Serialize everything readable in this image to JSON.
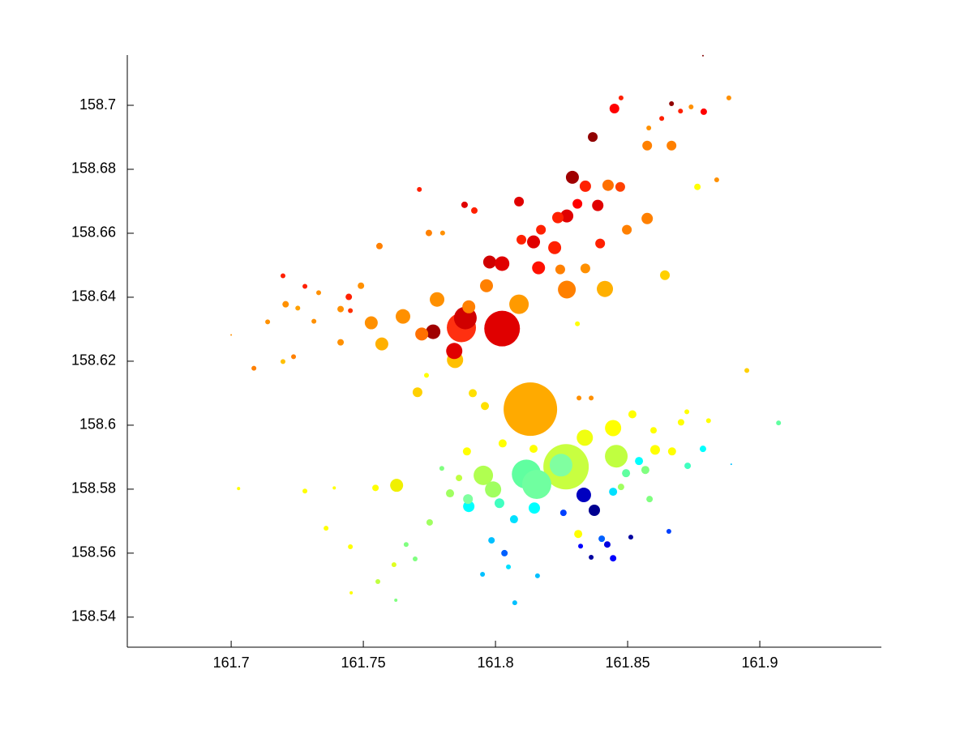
{
  "chart_data": {
    "type": "scatter",
    "xlim": [
      161.6607,
      161.946
    ],
    "ylim": [
      158.5306,
      158.7157
    ],
    "xticks": [
      161.7,
      161.75,
      161.8,
      161.85,
      161.9
    ],
    "yticks": [
      158.54,
      158.56,
      158.58,
      158.6,
      158.62,
      158.64,
      158.66,
      158.68,
      158.7
    ],
    "x": [
      161.8132,
      161.8267,
      161.8025,
      161.7871,
      161.8117,
      161.8156,
      161.7886,
      161.8248,
      161.8457,
      161.7954,
      161.8089,
      161.827,
      161.8414,
      161.8338,
      161.8445,
      161.7847,
      161.7844,
      161.7991,
      161.8334,
      161.7764,
      161.7779,
      161.765,
      161.7626,
      161.7721,
      161.753,
      161.757,
      161.7899,
      161.7966,
      161.7978,
      161.8025,
      161.8144,
      161.8224,
      161.827,
      161.8236,
      161.8291,
      161.834,
      161.8387,
      161.8426,
      161.8368,
      161.845,
      161.8574,
      161.8666,
      161.8472,
      161.8574,
      161.8497,
      161.831,
      161.8163,
      161.8245,
      161.8172,
      161.8098,
      161.8089,
      161.834,
      161.8396,
      161.8641,
      161.8374,
      161.8764,
      161.8837,
      161.8883,
      161.8788,
      161.874,
      161.87,
      161.8629,
      161.858,
      161.8475,
      161.8666,
      161.8785,
      161.7196,
      161.7138,
      161.7206,
      161.7252,
      161.7279,
      161.7331,
      161.7313,
      161.7414,
      161.7445,
      161.7491,
      161.7414,
      161.7451,
      161.7561,
      161.7086,
      161.7196,
      161.7236,
      161.7,
      161.7748,
      161.78,
      161.792,
      161.7883,
      161.7712,
      161.7705,
      161.7914,
      161.796,
      161.7739,
      161.8316,
      161.8362,
      161.831,
      161.8951,
      161.8518,
      161.8598,
      161.8702,
      161.8724,
      161.8806,
      161.9071,
      161.8892,
      161.8785,
      161.8727,
      161.8668,
      161.8604,
      161.8543,
      161.8567,
      161.8445,
      161.8494,
      161.8475,
      161.8583,
      161.8147,
      161.807,
      161.8015,
      161.7899,
      161.7896,
      161.7828,
      161.7751,
      161.7862,
      161.7797,
      161.7892,
      161.8027,
      161.8144,
      161.7662,
      161.7696,
      161.7616,
      161.7555,
      161.7623,
      161.7454,
      161.7451,
      161.7546,
      161.739,
      161.7279,
      161.7028,
      161.7359,
      161.8313,
      161.8257,
      161.8402,
      161.8445,
      161.8423,
      161.8362,
      161.8512,
      161.8656,
      161.8322,
      161.8034,
      161.8049,
      161.7951,
      161.8073,
      161.8159,
      161.7985
    ],
    "values": [
      158.605,
      158.587,
      158.6302,
      158.6305,
      158.5847,
      158.5815,
      158.6335,
      158.5875,
      158.5903,
      158.5843,
      158.6378,
      158.6424,
      158.6426,
      158.5961,
      158.5991,
      158.6204,
      158.6232,
      158.5799,
      158.5782,
      158.6292,
      158.6393,
      158.634,
      158.5812,
      158.6285,
      158.632,
      158.6254,
      158.637,
      158.6436,
      158.651,
      158.6505,
      158.6573,
      158.6555,
      158.6654,
      158.6649,
      158.6775,
      158.6747,
      158.6687,
      158.675,
      158.6901,
      158.699,
      158.6874,
      158.6874,
      158.6745,
      158.6646,
      158.6611,
      158.6692,
      158.6492,
      158.6487,
      158.6611,
      158.658,
      158.6699,
      158.649,
      158.6568,
      158.6469,
      158.5734,
      158.6745,
      158.6767,
      158.7023,
      158.698,
      158.6995,
      158.6982,
      158.6959,
      158.6929,
      158.7023,
      158.7005,
      158.7155,
      158.6467,
      158.6323,
      158.6378,
      158.6366,
      158.6434,
      158.6414,
      158.6325,
      158.6363,
      158.6401,
      158.6436,
      158.6259,
      158.6358,
      158.656,
      158.6178,
      158.6199,
      158.6214,
      158.6282,
      158.6601,
      158.6601,
      158.6671,
      158.6689,
      158.6737,
      158.6103,
      158.61,
      158.606,
      158.6156,
      158.6085,
      158.6085,
      158.6317,
      158.6171,
      158.6034,
      158.5984,
      158.6009,
      158.6042,
      158.6014,
      158.6007,
      158.5878,
      158.5926,
      158.5873,
      158.5918,
      158.5923,
      158.5888,
      158.586,
      158.5792,
      158.585,
      158.5807,
      158.5769,
      158.5741,
      158.5706,
      158.5756,
      158.5746,
      158.5769,
      158.5787,
      158.5696,
      158.5835,
      158.5865,
      158.5918,
      158.5943,
      158.5926,
      158.5627,
      158.5582,
      158.5564,
      158.5511,
      158.5453,
      158.5476,
      158.562,
      158.5804,
      158.5804,
      158.5794,
      158.5802,
      158.5678,
      158.566,
      158.5726,
      158.5645,
      158.5584,
      158.5627,
      158.5587,
      158.565,
      158.5668,
      158.5622,
      158.56,
      158.5557,
      158.5534,
      158.5445,
      158.5529,
      158.564
    ],
    "sizes": [
      33,
      28,
      22,
      18,
      18,
      18,
      14,
      14,
      14,
      12,
      12,
      11,
      10,
      10,
      10,
      10,
      10,
      10,
      9,
      9,
      9,
      9,
      8,
      8,
      8,
      8,
      8,
      8,
      8,
      9,
      8,
      8,
      8,
      7,
      8,
      7,
      7,
      7,
      6,
      6,
      6,
      6,
      6,
      7,
      6,
      6,
      8,
      6,
      6,
      6,
      6,
      6,
      6,
      6,
      7,
      4,
      3,
      3,
      4,
      3,
      3,
      3,
      3,
      3,
      3,
      1,
      3,
      3,
      4,
      3,
      3,
      3,
      3,
      4,
      4,
      4,
      4,
      3,
      4,
      3,
      3,
      3,
      1,
      4,
      3,
      4,
      4,
      3,
      6,
      5,
      5,
      3,
      3,
      3,
      3,
      3,
      5,
      4,
      4,
      3,
      3,
      3,
      1,
      4,
      4,
      5,
      6,
      5,
      5,
      5,
      5,
      4,
      4,
      7,
      5,
      6,
      7,
      6,
      5,
      4,
      4,
      3,
      5,
      5,
      5,
      3,
      3,
      3,
      3,
      2,
      2,
      3,
      4,
      2,
      3,
      2,
      3,
      5,
      4,
      4,
      4,
      4,
      3,
      3,
      3,
      3,
      4,
      3,
      3,
      3,
      3,
      4
    ],
    "colors": [
      "#ffaa00",
      "#c8ff40",
      "#e00000",
      "#ff3010",
      "#60ffa0",
      "#70ffa0",
      "#d00000",
      "#80ffa0",
      "#c0ff40",
      "#b0ff50",
      "#ff9a00",
      "#ff8000",
      "#ffb000",
      "#f0ff10",
      "#ffff00",
      "#ffc000",
      "#e00000",
      "#a0ff60",
      "#0000c0",
      "#a00000",
      "#ff9000",
      "#ff9000",
      "#f0f000",
      "#ff7000",
      "#ff9000",
      "#ffb000",
      "#ff8000",
      "#ff8000",
      "#d00000",
      "#e00000",
      "#e00000",
      "#ff2000",
      "#e00000",
      "#ff2000",
      "#a00000",
      "#ff2000",
      "#e00000",
      "#ff7000",
      "#900000",
      "#ff0000",
      "#ff8000",
      "#ff8000",
      "#ff4000",
      "#ff8000",
      "#ff8000",
      "#ff0000",
      "#ff1000",
      "#ff8000",
      "#ff2000",
      "#ff2000",
      "#e00000",
      "#ff9000",
      "#ff2000",
      "#ffd000",
      "#000090",
      "#ffff00",
      "#ff9000",
      "#ff9000",
      "#ff0000",
      "#ff9000",
      "#ff2000",
      "#ff2000",
      "#ff9000",
      "#ff2000",
      "#900000",
      "#800000",
      "#ff2000",
      "#ff9000",
      "#ff9000",
      "#ffa000",
      "#ff2000",
      "#ff9000",
      "#ff9000",
      "#ff9000",
      "#ff2000",
      "#ff9000",
      "#ff9000",
      "#ff3000",
      "#ff8000",
      "#ff8000",
      "#ffc000",
      "#ff8000",
      "#ff9000",
      "#ff8000",
      "#ff9000",
      "#ff2000",
      "#e00000",
      "#ff2000",
      "#ffd000",
      "#ffe000",
      "#ffe000",
      "#ffff00",
      "#ff9000",
      "#ff9000",
      "#ffff00",
      "#ffd000",
      "#ffff00",
      "#ffff00",
      "#ffff00",
      "#ffff00",
      "#ffff00",
      "#60ffa0",
      "#00c0ff",
      "#00ffff",
      "#40ffc0",
      "#ffff00",
      "#ffff00",
      "#00ffff",
      "#80ff80",
      "#00e0ff",
      "#60ffa0",
      "#a0ff60",
      "#80ff80",
      "#00ffff",
      "#00e0ff",
      "#40ffc0",
      "#00ffff",
      "#80ffa0",
      "#a0ff60",
      "#a0ff60",
      "#c0ff40",
      "#80ff80",
      "#ffff00",
      "#ffff00",
      "#ffff00",
      "#80ff80",
      "#80ff80",
      "#e0ff20",
      "#c0ff40",
      "#80ff80",
      "#ffff00",
      "#ffff00",
      "#ffff00",
      "#ffff00",
      "#ffff00",
      "#ffff00",
      "#ffff00",
      "#ffff00",
      "#0040ff",
      "#0060ff",
      "#0000ff",
      "#0000e0",
      "#0000a0",
      "#0000a0",
      "#0040ff",
      "#0000ff",
      "#0060ff",
      "#00e0ff",
      "#00c0ff",
      "#00c0ff",
      "#00c0ff",
      "#00c0ff",
      "#00e0ff"
    ]
  }
}
